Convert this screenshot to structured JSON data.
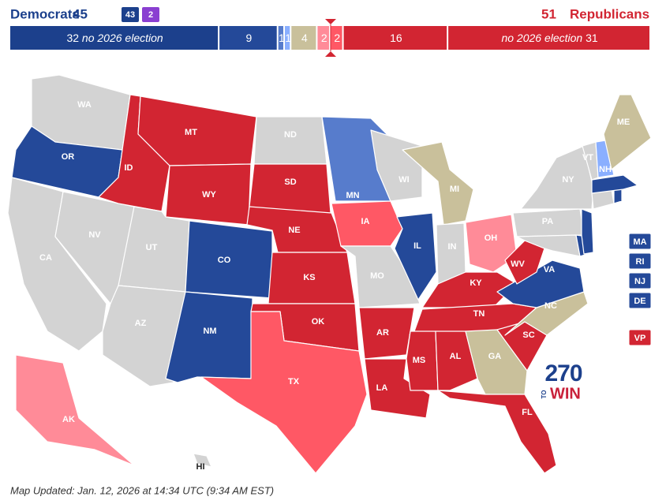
{
  "header": {
    "democrats": {
      "label": "Democrats",
      "total": 45,
      "badges": [
        {
          "value": 43,
          "color": "#1c408c"
        },
        {
          "value": 2,
          "color": "#8a3fd1"
        }
      ]
    },
    "republicans": {
      "label": "Republicans",
      "total": 51
    }
  },
  "balance_bar": [
    {
      "value": 32,
      "color": "#1c408c",
      "label": "no 2026 election"
    },
    {
      "value": 9,
      "color": "#244999"
    },
    {
      "value": 1,
      "color": "#577ccc"
    },
    {
      "value": 1,
      "color": "#8aafff"
    },
    {
      "value": 4,
      "color": "#c9c09b"
    },
    {
      "value": 2,
      "color": "#ff8b98"
    },
    {
      "value": 2,
      "color": "#ff5865"
    },
    {
      "value": 16,
      "color": "#d22532"
    },
    {
      "value": 31,
      "color": "#d22532",
      "label": "no 2026 election"
    }
  ],
  "states": [
    {
      "abbr": "WA",
      "color": "#d3d3d3"
    },
    {
      "abbr": "OR",
      "color": "#244999"
    },
    {
      "abbr": "CA",
      "color": "#d3d3d3"
    },
    {
      "abbr": "NV",
      "color": "#d3d3d3"
    },
    {
      "abbr": "ID",
      "color": "#d22532"
    },
    {
      "abbr": "MT",
      "color": "#d22532"
    },
    {
      "abbr": "WY",
      "color": "#d22532"
    },
    {
      "abbr": "UT",
      "color": "#d3d3d3"
    },
    {
      "abbr": "AZ",
      "color": "#d3d3d3"
    },
    {
      "abbr": "CO",
      "color": "#244999"
    },
    {
      "abbr": "NM",
      "color": "#244999"
    },
    {
      "abbr": "ND",
      "color": "#d3d3d3"
    },
    {
      "abbr": "SD",
      "color": "#d22532"
    },
    {
      "abbr": "NE",
      "color": "#d22532"
    },
    {
      "abbr": "KS",
      "color": "#d22532"
    },
    {
      "abbr": "OK",
      "color": "#d22532"
    },
    {
      "abbr": "TX",
      "color": "#ff5865"
    },
    {
      "abbr": "MN",
      "color": "#577ccc"
    },
    {
      "abbr": "IA",
      "color": "#ff5865"
    },
    {
      "abbr": "MO",
      "color": "#d3d3d3"
    },
    {
      "abbr": "AR",
      "color": "#d22532"
    },
    {
      "abbr": "LA",
      "color": "#d22532"
    },
    {
      "abbr": "WI",
      "color": "#d3d3d3"
    },
    {
      "abbr": "IL",
      "color": "#244999"
    },
    {
      "abbr": "MI",
      "color": "#c9c09b"
    },
    {
      "abbr": "IN",
      "color": "#d3d3d3"
    },
    {
      "abbr": "OH",
      "color": "#ff8b98"
    },
    {
      "abbr": "KY",
      "color": "#d22532"
    },
    {
      "abbr": "TN",
      "color": "#d22532"
    },
    {
      "abbr": "MS",
      "color": "#d22532"
    },
    {
      "abbr": "AL",
      "color": "#d22532"
    },
    {
      "abbr": "GA",
      "color": "#c9c09b"
    },
    {
      "abbr": "FL",
      "color": "#d22532"
    },
    {
      "abbr": "SC",
      "color": "#d22532"
    },
    {
      "abbr": "NC",
      "color": "#c9c09b"
    },
    {
      "abbr": "VA",
      "color": "#244999"
    },
    {
      "abbr": "WV",
      "color": "#d22532"
    },
    {
      "abbr": "PA",
      "color": "#d3d3d3"
    },
    {
      "abbr": "NY",
      "color": "#d3d3d3"
    },
    {
      "abbr": "VT",
      "color": "#d3d3d3"
    },
    {
      "abbr": "NH",
      "color": "#8aafff"
    },
    {
      "abbr": "ME",
      "color": "#c9c09b"
    },
    {
      "abbr": "AK",
      "color": "#ff8b98"
    },
    {
      "abbr": "HI",
      "color": "#d3d3d3"
    },
    {
      "color": "#d3d3d3"
    },
    {
      "color": "#244999"
    },
    {
      "color": "#d3d3d3"
    },
    {
      "color": "#244999"
    },
    {
      "color": "#244999"
    },
    {
      "color": "#244999"
    }
  ],
  "side_states": [
    {
      "abbr": "MA",
      "color": "#244999"
    },
    {
      "abbr": "RI",
      "color": "#244999"
    },
    {
      "abbr": "NJ",
      "color": "#244999"
    },
    {
      "abbr": "DE",
      "color": "#244999"
    },
    {
      "abbr": "VP",
      "color": "#d22532"
    }
  ],
  "logo": {
    "number": "270",
    "to": "TO",
    "win": "WIN"
  },
  "footer": "Map Updated: Jan. 12, 2026 at 14:34 UTC (9:34 AM EST)"
}
